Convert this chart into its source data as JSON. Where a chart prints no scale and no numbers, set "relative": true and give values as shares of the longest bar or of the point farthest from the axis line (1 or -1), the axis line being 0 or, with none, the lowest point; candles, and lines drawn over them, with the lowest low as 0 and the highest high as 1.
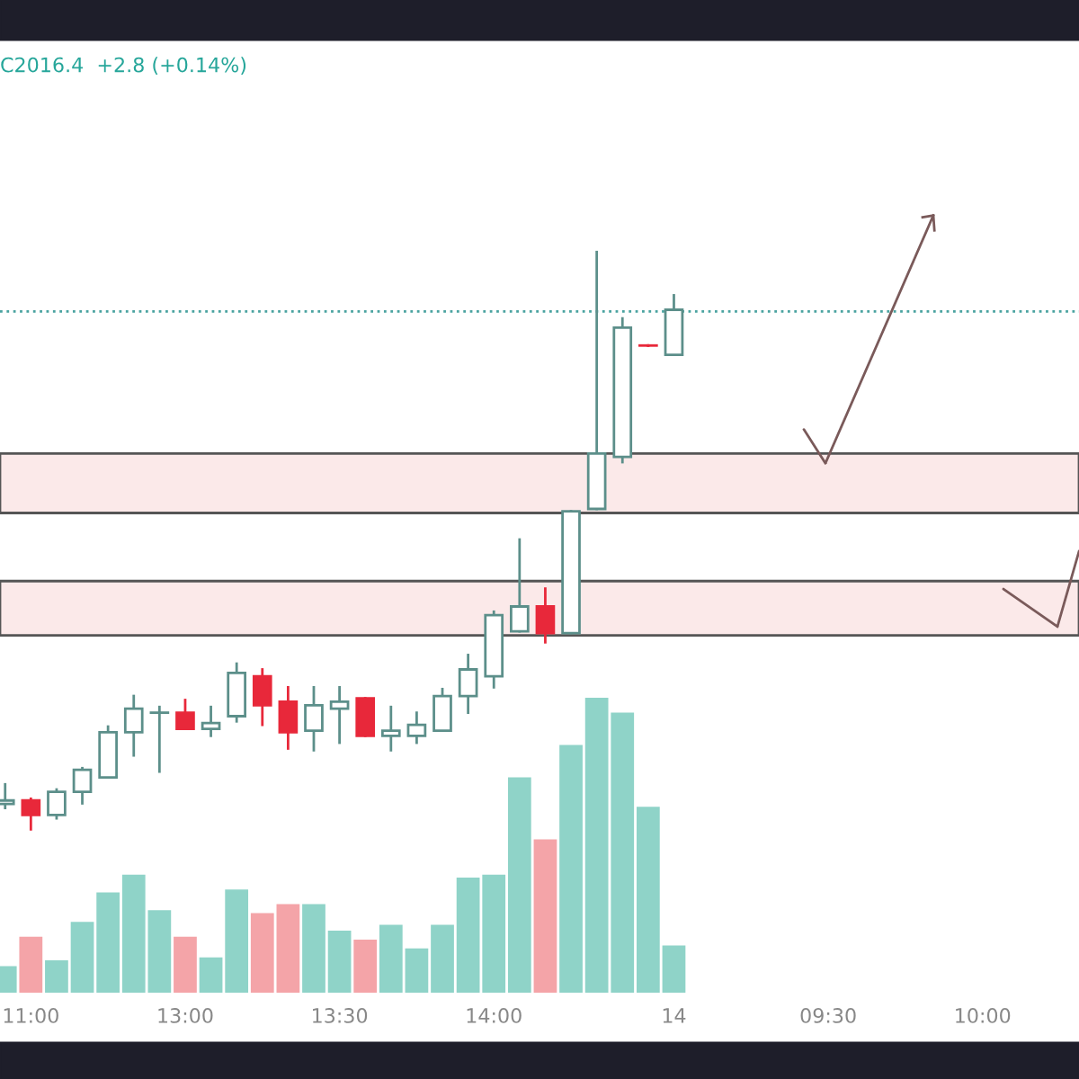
{
  "chart_data": [
    {
      "type": "candlestick",
      "title": "C2016.4  +2.8 (+0.14%)",
      "relative": true,
      "tick_labels": "x",
      "categories": [
        null,
        "11:00",
        null,
        null,
        null,
        null,
        null,
        "13:00",
        null,
        null,
        null,
        null,
        null,
        "13:30",
        null,
        null,
        null,
        null,
        null,
        "14:00",
        null,
        null,
        null,
        null,
        null,
        null,
        "14",
        null,
        null,
        null,
        null,
        null,
        "09:30",
        null,
        null,
        null,
        null,
        null,
        "10:00",
        null,
        null,
        null
      ],
      "ohlc": [
        [
          0.044,
          0.078,
          0.037,
          0.05
        ],
        [
          0.05,
          0.053,
          0.0,
          0.025
        ],
        [
          0.025,
          0.069,
          0.019,
          0.065
        ],
        [
          0.065,
          0.106,
          0.045,
          0.103
        ],
        [
          0.09,
          0.178,
          0.09,
          0.168
        ],
        [
          0.168,
          0.231,
          0.128,
          0.209
        ],
        [
          0.202,
          0.212,
          0.1,
          0.202
        ],
        [
          0.202,
          0.224,
          0.174,
          0.174
        ],
        [
          0.174,
          0.212,
          0.162,
          0.184
        ],
        [
          0.196,
          0.287,
          0.187,
          0.271
        ],
        [
          0.265,
          0.277,
          0.181,
          0.215
        ],
        [
          0.221,
          0.246,
          0.14,
          0.168
        ],
        [
          0.171,
          0.246,
          0.137,
          0.215
        ],
        [
          0.209,
          0.246,
          0.15,
          0.221
        ],
        [
          0.227,
          0.227,
          0.162,
          0.162
        ],
        [
          0.162,
          0.212,
          0.137,
          0.171
        ],
        [
          0.162,
          0.202,
          0.15,
          0.181
        ],
        [
          0.171,
          0.243,
          0.171,
          0.231
        ],
        [
          0.231,
          0.302,
          0.202,
          0.277
        ],
        [
          0.265,
          0.377,
          0.246,
          0.371
        ],
        [
          0.343,
          0.502,
          0.343,
          0.386
        ],
        [
          0.386,
          0.417,
          0.324,
          0.34
        ],
        [
          0.34,
          0.551,
          0.34,
          0.551
        ],
        [
          0.555,
          1.0,
          0.555,
          0.651
        ],
        [
          0.645,
          0.885,
          0.636,
          0.869
        ],
        [
          0.838,
          0.838,
          0.838,
          0.838
        ],
        [
          0.822,
          0.925,
          0.822,
          0.9
        ],
        null,
        null,
        null,
        null,
        null,
        null,
        null,
        null,
        null,
        null,
        null,
        null,
        null,
        null,
        null
      ],
      "colors": [
        "#5c8f8a",
        "#e8283a",
        "#5c8f8a",
        "#5c8f8a",
        "#5c8f8a",
        "#5c8f8a",
        "#5c8f8a",
        "#e8283a",
        "#5c8f8a",
        "#5c8f8a",
        "#e8283a",
        "#e8283a",
        "#5c8f8a",
        "#5c8f8a",
        "#e8283a",
        "#5c8f8a",
        "#5c8f8a",
        "#5c8f8a",
        "#5c8f8a",
        "#5c8f8a",
        "#5c8f8a",
        "#e8283a",
        "#5c8f8a",
        "#5c8f8a",
        "#5c8f8a",
        "#e8283a",
        "#5c8f8a",
        null,
        null,
        null,
        null,
        null,
        null,
        null,
        null,
        null,
        null,
        null,
        null,
        null,
        null,
        null
      ],
      "bands": [
        {
          "axis": "y",
          "from": 0.548,
          "to": 0.651,
          "color": "#fbe9e9"
        },
        {
          "axis": "y",
          "from": 0.336,
          "to": 0.43,
          "color": "#fbe9e9"
        }
      ],
      "ref_lines": [
        {
          "axis": "y",
          "value": 0.897,
          "color": "#4aa3a0",
          "line_style": "dotted"
        }
      ]
    },
    {
      "type": "bar",
      "relative": true,
      "tick_labels": false,
      "categories": [
        null,
        null,
        null,
        null,
        null,
        null,
        null,
        null,
        null,
        null,
        null,
        null,
        null,
        null,
        null,
        null,
        null,
        null,
        null,
        null,
        null,
        null,
        null,
        null,
        null,
        null,
        null,
        null,
        null,
        null,
        null,
        null,
        null,
        null,
        null,
        null,
        null,
        null,
        null,
        null,
        null,
        null
      ],
      "values": [
        0.09,
        0.19,
        0.11,
        0.24,
        0.34,
        0.4,
        0.28,
        0.19,
        0.12,
        0.35,
        0.27,
        0.3,
        0.3,
        0.21,
        0.18,
        0.23,
        0.15,
        0.23,
        0.39,
        0.4,
        0.73,
        0.52,
        0.84,
        1.0,
        0.95,
        0.63,
        0.16,
        null,
        null,
        null,
        null,
        null,
        null,
        null,
        null,
        null,
        null,
        null,
        null,
        null,
        null,
        null
      ],
      "colors": [
        "#8fd3c8",
        "#f4a4a8",
        "#8fd3c8",
        "#8fd3c8",
        "#8fd3c8",
        "#8fd3c8",
        "#8fd3c8",
        "#f4a4a8",
        "#8fd3c8",
        "#8fd3c8",
        "#f4a4a8",
        "#f4a4a8",
        "#8fd3c8",
        "#8fd3c8",
        "#f4a4a8",
        "#8fd3c8",
        "#8fd3c8",
        "#8fd3c8",
        "#8fd3c8",
        "#8fd3c8",
        "#8fd3c8",
        "#f4a4a8",
        "#8fd3c8",
        "#8fd3c8",
        "#8fd3c8",
        "#8fd3c8",
        "#8fd3c8",
        null,
        null,
        null,
        null,
        null,
        null,
        null,
        null,
        null,
        null,
        null,
        null,
        null,
        null,
        null
      ]
    }
  ]
}
